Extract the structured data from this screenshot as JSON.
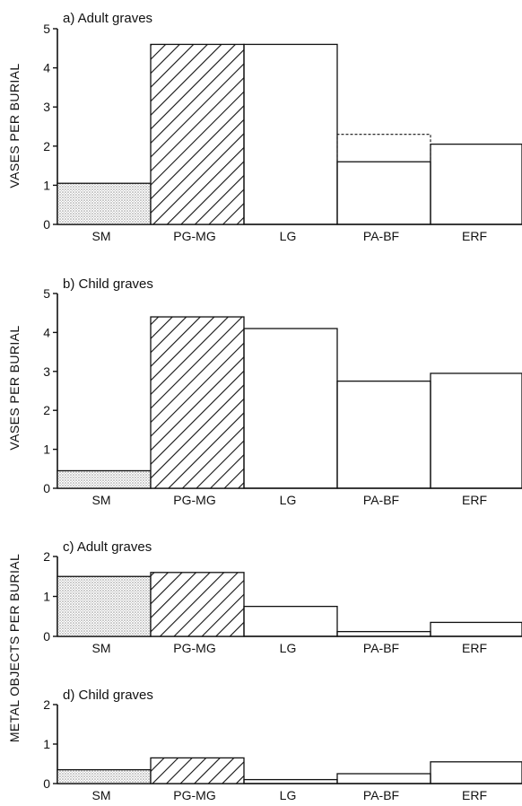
{
  "chart_data": [
    {
      "type": "bar",
      "title": "a) Adult graves",
      "ylabel": "VASES PER BURIAL",
      "ylim": [
        0,
        5
      ],
      "yticks": [
        "0",
        "1",
        "2",
        "3",
        "4",
        "5"
      ],
      "categories": [
        "SM",
        "PG-MG",
        "LG",
        "PA-BF",
        "ERF"
      ],
      "values": [
        1.05,
        4.6,
        4.6,
        1.6,
        2.05
      ],
      "secondary": [
        {
          "category": "PA-BF",
          "value": 2.3,
          "style": "dashed"
        }
      ]
    },
    {
      "type": "bar",
      "title": "b) Child graves",
      "ylabel": "VASES PER BURIAL",
      "ylim": [
        0,
        5
      ],
      "yticks": [
        "0",
        "1",
        "2",
        "3",
        "4",
        "5"
      ],
      "categories": [
        "SM",
        "PG-MG",
        "LG",
        "PA-BF",
        "ERF"
      ],
      "values": [
        0.45,
        4.4,
        4.1,
        2.75,
        2.95
      ],
      "secondary": []
    },
    {
      "type": "bar",
      "title": "c) Adult graves",
      "ylabel": "METAL OBJECTS PER BURIAL",
      "ylim": [
        0,
        2
      ],
      "yticks": [
        "0",
        "1",
        "2"
      ],
      "categories": [
        "SM",
        "PG-MG",
        "LG",
        "PA-BF",
        "ERF"
      ],
      "values": [
        1.5,
        1.6,
        0.75,
        0.12,
        0.35
      ],
      "secondary": []
    },
    {
      "type": "bar",
      "title": "d) Child graves",
      "ylabel": "",
      "ylim": [
        0,
        2
      ],
      "yticks": [
        "0",
        "1",
        "2"
      ],
      "categories": [
        "SM",
        "PG-MG",
        "LG",
        "PA-BF",
        "ERF"
      ],
      "values": [
        0.35,
        0.65,
        0.1,
        0.25,
        0.55
      ],
      "secondary": []
    }
  ],
  "styles": {
    "ink": "#111111",
    "stipple": "#9a9a9a",
    "fills": [
      "stipple",
      "hatch",
      "none",
      "none",
      "none"
    ]
  }
}
